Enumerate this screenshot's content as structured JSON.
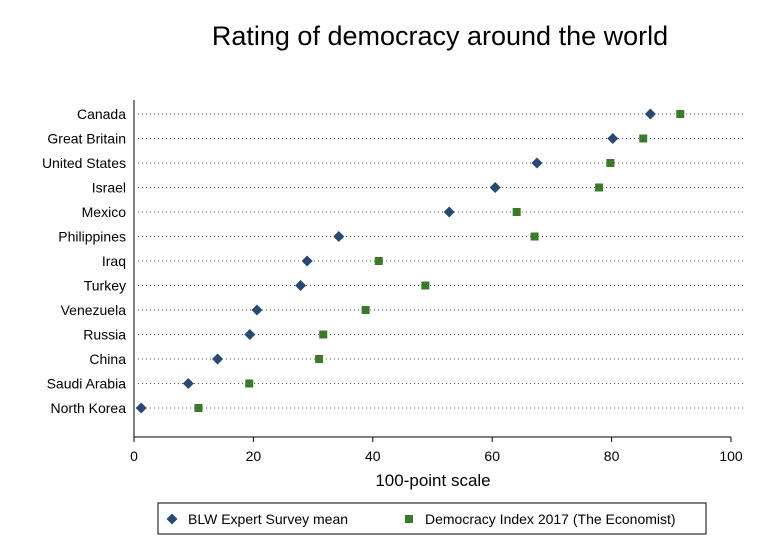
{
  "chart_data": {
    "type": "scatter",
    "title": "Rating of democracy around the world",
    "xlabel": "100-point scale",
    "ylabel": "",
    "xlim": [
      0,
      100
    ],
    "xticks": [
      0,
      20,
      40,
      60,
      80,
      100
    ],
    "grid": "dotted horizontal lines per category",
    "legend_position": "bottom",
    "categories": [
      "Canada",
      "Great Britain",
      "United States",
      "Israel",
      "Mexico",
      "Philippines",
      "Iraq",
      "Turkey",
      "Venezuela",
      "Russia",
      "China",
      "Saudi Arabia",
      "North Korea"
    ],
    "series": [
      {
        "name": "BLW Expert Survey mean",
        "marker": "diamond",
        "color": "#294a70",
        "values": [
          86.5,
          80.2,
          67.5,
          60.5,
          52.8,
          34.3,
          29.0,
          27.9,
          20.6,
          19.4,
          14.0,
          9.1,
          1.2
        ]
      },
      {
        "name": "Democracy Index 2017 (The Economist)",
        "marker": "square",
        "color": "#3b7a2a",
        "values": [
          91.5,
          85.3,
          79.8,
          77.9,
          64.1,
          67.1,
          41.0,
          48.8,
          38.8,
          31.7,
          31.0,
          19.3,
          10.8
        ]
      }
    ]
  }
}
